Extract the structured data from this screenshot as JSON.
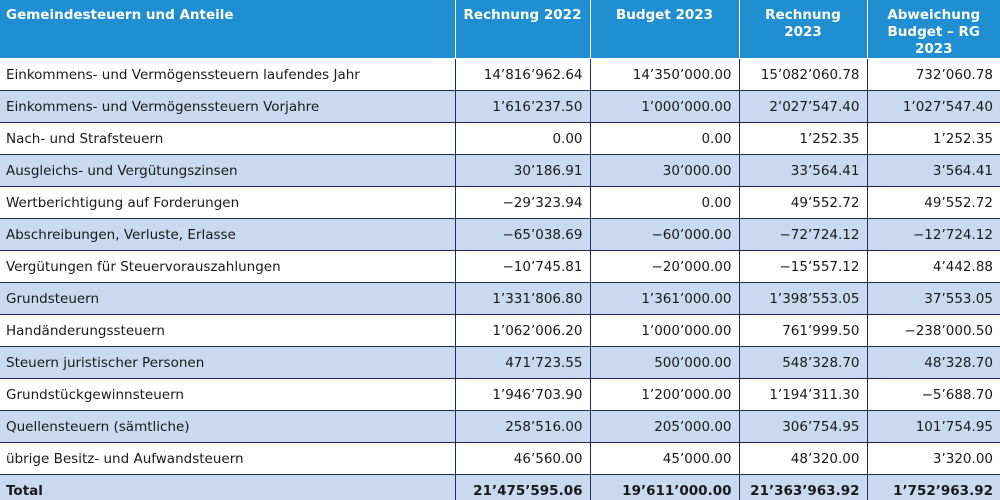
{
  "table": {
    "headers": [
      "Gemeindesteuern und Anteile",
      "Rechnung 2022",
      "Budget 2023",
      "Rechnung 2023",
      "Abweichung\nBudget – RG 2023"
    ],
    "rows": [
      [
        "Einkommens- und Vermögenssteuern laufendes Jahr",
        "14’816’962.64",
        "14’350’000.00",
        "15’082’060.78",
        "732’060.78"
      ],
      [
        "Einkommens- und Vermögenssteuern Vorjahre",
        "1’616’237.50",
        "1’000’000.00",
        "2’027’547.40",
        "1’027’547.40"
      ],
      [
        "Nach- und Strafsteuern",
        "0.00",
        "0.00",
        "1’252.35",
        "1’252.35"
      ],
      [
        "Ausgleichs- und Vergütungszinsen",
        "30’186.91",
        "30’000.00",
        "33’564.41",
        "3’564.41"
      ],
      [
        "Wertberichtigung auf Forderungen",
        "−29’323.94",
        "0.00",
        "49’552.72",
        "49’552.72"
      ],
      [
        "Abschreibungen, Verluste, Erlasse",
        "−65’038.69",
        "−60’000.00",
        "−72’724.12",
        "−12’724.12"
      ],
      [
        "Vergütungen für Steuervorauszahlungen",
        "−10’745.81",
        "−20’000.00",
        "−15’557.12",
        "4’442.88"
      ],
      [
        "Grundsteuern",
        "1’331’806.80",
        "1’361’000.00",
        "1’398’553.05",
        "37’553.05"
      ],
      [
        "Handänderungssteuern",
        "1’062’006.20",
        "1’000’000.00",
        "761’999.50",
        "−238’000.50"
      ],
      [
        "Steuern juristischer Personen",
        "471’723.55",
        "500’000.00",
        "548’328.70",
        "48’328.70"
      ],
      [
        "Grundstückgewinnsteuern",
        "1’946’703.90",
        "1’200’000.00",
        "1’194’311.30",
        "−5’688.70"
      ],
      [
        "Quellensteuern (sämtliche)",
        "258’516.00",
        "205’000.00",
        "306’754.95",
        "101’754.95"
      ],
      [
        "übrige Besitz- und Aufwandsteuern",
        "46’560.00",
        "45’000.00",
        "48’320.00",
        "3’320.00"
      ]
    ],
    "total": [
      "Total",
      "21’475’595.06",
      "19’611’000.00",
      "21’363’963.92",
      "1’752’963.92"
    ]
  }
}
